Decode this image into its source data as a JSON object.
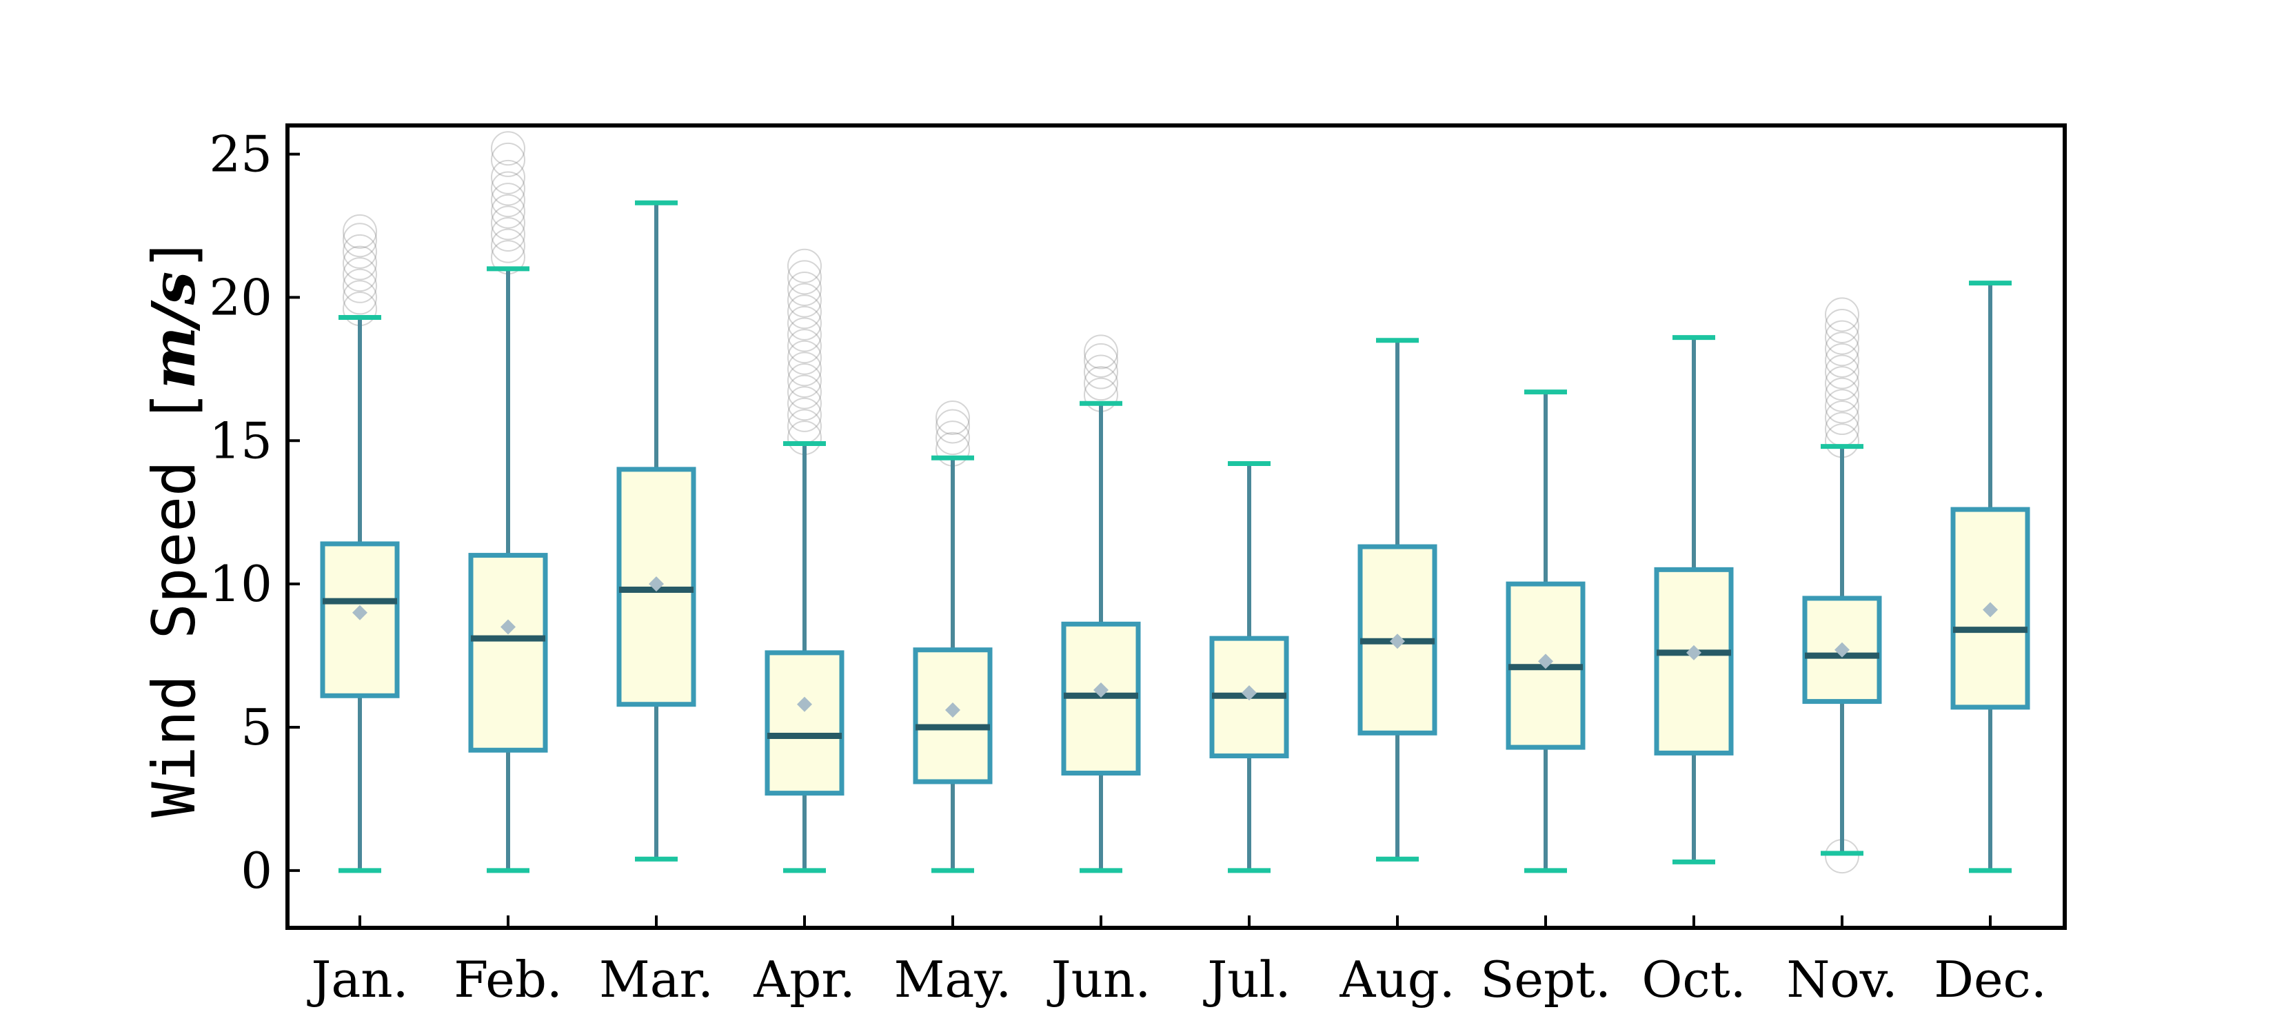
{
  "chart_data": {
    "type": "box",
    "ylabel_text": "Wind Speed [",
    "ylabel_unit": "m/s",
    "ylabel_close": "]",
    "ylim": [
      -2,
      26
    ],
    "yticks": [
      0,
      5,
      10,
      15,
      20,
      25
    ],
    "grid": false,
    "legend": "none",
    "categories": [
      "Jan.",
      "Feb.",
      "Mar.",
      "Apr.",
      "May.",
      "Jun.",
      "Jul.",
      "Aug.",
      "Sept.",
      "Oct.",
      "Nov.",
      "Dec."
    ],
    "boxes": [
      {
        "whisker_low": 0,
        "q1": 6.1,
        "median": 9.4,
        "mean": 9.0,
        "q3": 11.4,
        "whisker_high": 19.3,
        "outliers": [
          19.6,
          20.0,
          20.4,
          20.8,
          21.2,
          21.6,
          22.0,
          22.3
        ]
      },
      {
        "whisker_low": 0,
        "q1": 4.2,
        "median": 8.1,
        "mean": 8.5,
        "q3": 11.0,
        "whisker_high": 21.0,
        "outliers": [
          21.4,
          21.8,
          22.2,
          22.6,
          23.0,
          23.4,
          23.8,
          24.2,
          24.8,
          25.2
        ]
      },
      {
        "whisker_low": 0.4,
        "q1": 5.8,
        "median": 9.8,
        "mean": 10.0,
        "q3": 14.0,
        "whisker_high": 23.3,
        "outliers": []
      },
      {
        "whisker_low": 0,
        "q1": 2.7,
        "median": 4.7,
        "mean": 5.8,
        "q3": 7.6,
        "whisker_high": 14.9,
        "outliers": [
          15.1,
          15.5,
          15.9,
          16.3,
          16.7,
          17.1,
          17.5,
          17.9,
          18.3,
          18.7,
          19.1,
          19.5,
          19.9,
          20.3,
          20.7,
          21.1
        ]
      },
      {
        "whisker_low": 0,
        "q1": 3.1,
        "median": 5.0,
        "mean": 5.6,
        "q3": 7.7,
        "whisker_high": 14.4,
        "outliers": [
          14.7,
          15.1,
          15.5,
          15.8
        ]
      },
      {
        "whisker_low": 0,
        "q1": 3.4,
        "median": 6.1,
        "mean": 6.3,
        "q3": 8.6,
        "whisker_high": 16.3,
        "outliers": [
          16.6,
          17.0,
          17.4,
          17.8,
          18.1
        ]
      },
      {
        "whisker_low": 0,
        "q1": 4.0,
        "median": 6.1,
        "mean": 6.2,
        "q3": 8.1,
        "whisker_high": 14.2,
        "outliers": []
      },
      {
        "whisker_low": 0.4,
        "q1": 4.8,
        "median": 8.0,
        "mean": 8.0,
        "q3": 11.3,
        "whisker_high": 18.5,
        "outliers": []
      },
      {
        "whisker_low": 0,
        "q1": 4.3,
        "median": 7.1,
        "mean": 7.3,
        "q3": 10.0,
        "whisker_high": 16.7,
        "outliers": []
      },
      {
        "whisker_low": 0.3,
        "q1": 4.1,
        "median": 7.6,
        "mean": 7.6,
        "q3": 10.5,
        "whisker_high": 18.6,
        "outliers": []
      },
      {
        "whisker_low": 0.6,
        "q1": 5.9,
        "median": 7.5,
        "mean": 7.7,
        "q3": 9.5,
        "whisker_high": 14.8,
        "outliers": [
          0.5,
          15.0,
          15.4,
          15.8,
          16.2,
          16.6,
          17.0,
          17.4,
          17.8,
          18.2,
          18.6,
          19.0,
          19.4
        ]
      },
      {
        "whisker_low": 0,
        "q1": 5.7,
        "median": 8.4,
        "mean": 9.1,
        "q3": 12.6,
        "whisker_high": 20.5,
        "outliers": []
      }
    ],
    "colors": {
      "box_fill": "#fdfde0",
      "box_edge": "#3a9ab5",
      "whisker": "#4a8899",
      "cap": "#1cc4a0",
      "median": "#275a66",
      "mean": "#a8bcc8",
      "outlier": "#888888",
      "axis": "#000000"
    }
  }
}
